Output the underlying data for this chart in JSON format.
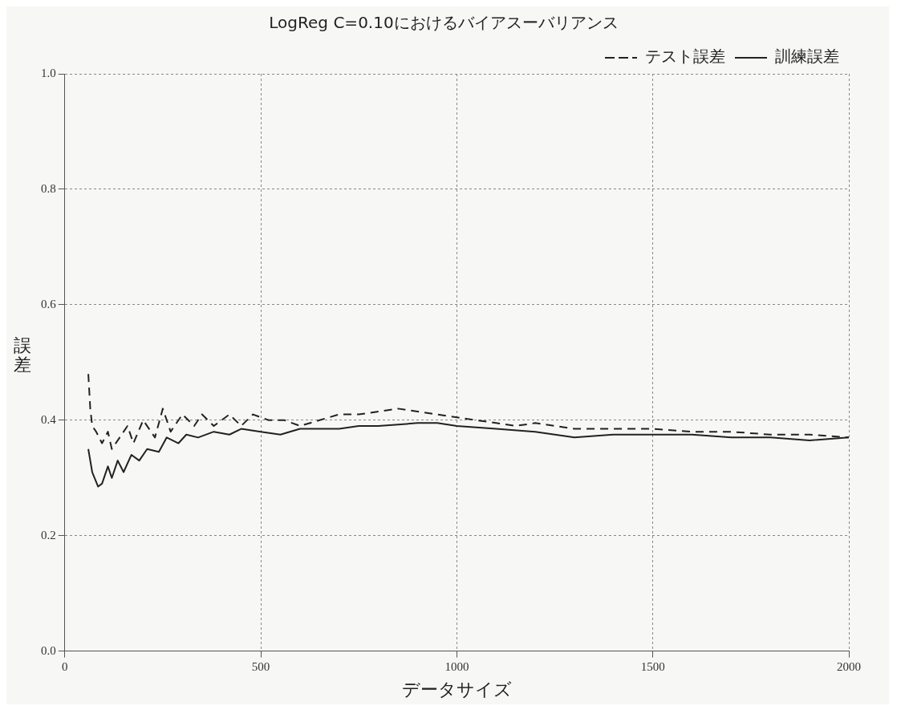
{
  "chart_data": {
    "type": "line",
    "title": "LogReg C=0.10におけるバイアスーバリアンス",
    "xlabel": "データサイズ",
    "ylabel": "誤差",
    "xlim": [
      0,
      2000
    ],
    "xticks": [
      0,
      500,
      1000,
      1500,
      2000
    ],
    "ylim": [
      0,
      1
    ],
    "yticks": [
      {
        "value": 0,
        "label": "0.0"
      },
      0.2,
      0.4,
      0.6,
      0.8,
      {
        "value": 1,
        "label": "1.0"
      }
    ],
    "grid": true,
    "legend": "top right",
    "marker": "none",
    "series": [
      {
        "name": "テスト誤差",
        "color": "#222222",
        "line_style": "dashed",
        "x": [
          60,
          65,
          70,
          80,
          95,
          110,
          120,
          140,
          160,
          175,
          200,
          230,
          250,
          270,
          300,
          330,
          350,
          380,
          420,
          450,
          480,
          520,
          560,
          600,
          650,
          700,
          750,
          800,
          850,
          900,
          950,
          1000,
          1050,
          1100,
          1150,
          1200,
          1250,
          1300,
          1400,
          1500,
          1600,
          1700,
          1800,
          1900,
          2000
        ],
        "values": [
          0.48,
          0.42,
          0.39,
          0.38,
          0.36,
          0.38,
          0.35,
          0.37,
          0.39,
          0.36,
          0.4,
          0.37,
          0.42,
          0.38,
          0.41,
          0.39,
          0.41,
          0.39,
          0.41,
          0.39,
          0.41,
          0.4,
          0.4,
          0.39,
          0.4,
          0.41,
          0.41,
          0.415,
          0.42,
          0.415,
          0.41,
          0.405,
          0.4,
          0.395,
          0.39,
          0.395,
          0.39,
          0.385,
          0.385,
          0.385,
          0.38,
          0.38,
          0.375,
          0.375,
          0.37
        ]
      },
      {
        "name": "訓練誤差",
        "color": "#222222",
        "line_style": "solid",
        "x": [
          60,
          70,
          85,
          95,
          110,
          120,
          135,
          150,
          170,
          190,
          210,
          240,
          260,
          290,
          310,
          340,
          380,
          420,
          450,
          500,
          550,
          600,
          700,
          750,
          800,
          900,
          950,
          1000,
          1100,
          1200,
          1300,
          1400,
          1500,
          1600,
          1700,
          1800,
          1900,
          2000
        ],
        "values": [
          0.35,
          0.31,
          0.285,
          0.29,
          0.32,
          0.3,
          0.33,
          0.31,
          0.34,
          0.33,
          0.35,
          0.345,
          0.37,
          0.36,
          0.375,
          0.37,
          0.38,
          0.375,
          0.385,
          0.38,
          0.375,
          0.385,
          0.385,
          0.39,
          0.39,
          0.395,
          0.395,
          0.39,
          0.385,
          0.38,
          0.37,
          0.375,
          0.375,
          0.375,
          0.37,
          0.37,
          0.365,
          0.37
        ]
      }
    ]
  }
}
